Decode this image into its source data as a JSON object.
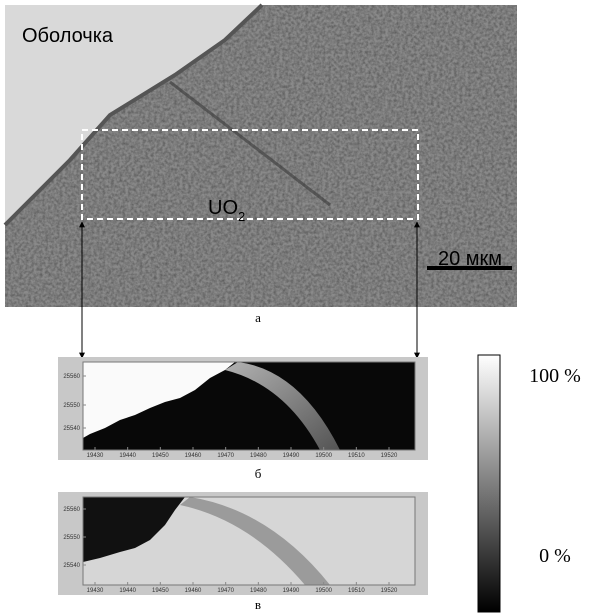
{
  "figure": {
    "micrograph": {
      "label_cladding": "Оболочка",
      "label_uo": "UO",
      "label_uo_sub": "2",
      "scale_bar": "20 мкм",
      "caption": "а"
    },
    "map_b": {
      "caption": "б",
      "yticks": [
        25560,
        25550,
        25540
      ],
      "xticks": [
        19430,
        19440,
        19450,
        19460,
        19470,
        19480,
        19490,
        19500,
        19510,
        19520
      ]
    },
    "map_v": {
      "caption": "в",
      "yticks": [
        25560,
        25550,
        25540
      ],
      "xticks": [
        19430,
        19440,
        19450,
        19460,
        19470,
        19480,
        19490,
        19500,
        19510,
        19520
      ]
    },
    "colorbar": {
      "top": "100 %",
      "bottom": "0 %"
    }
  }
}
